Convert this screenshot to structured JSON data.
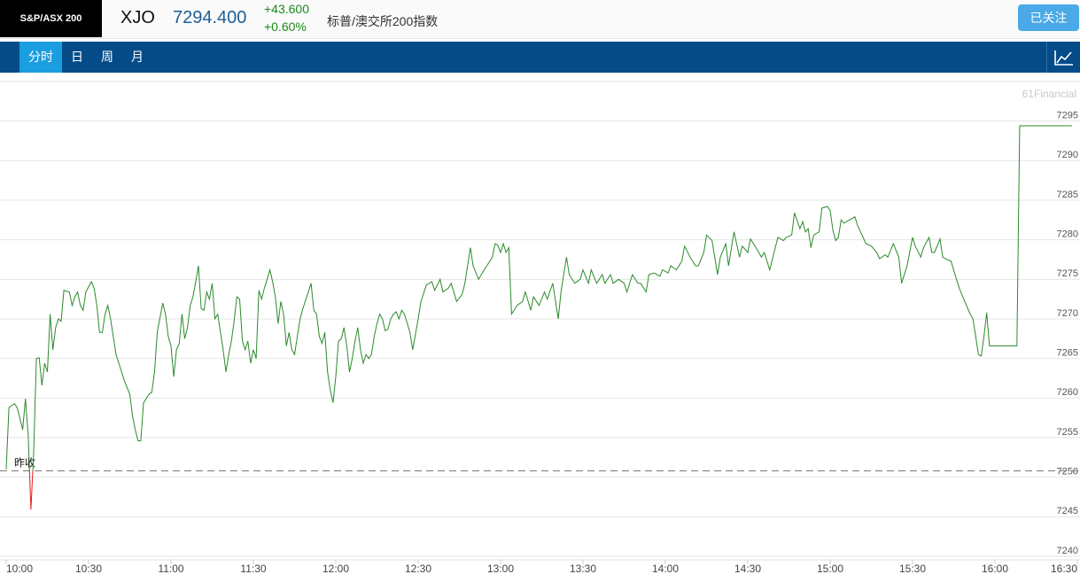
{
  "header": {
    "logo": "S&P/ASX 200",
    "symbol": "XJO",
    "price": "7294.400",
    "change": "+43.600",
    "change_percent": "+0.60%",
    "name": "标普/澳交所200指数",
    "follow_button": "已关注"
  },
  "tabs": {
    "items": [
      "分时",
      "日",
      "周",
      "月"
    ],
    "selected": 0
  },
  "chart_data": {
    "type": "line",
    "watermark": "61Financial",
    "x": [
      "10:00",
      "10:01",
      "10:03",
      "10:04",
      "10:06",
      "10:07",
      "10:08",
      "10:09",
      "10:10",
      "10:11",
      "10:12",
      "10:13",
      "10:14",
      "10:15",
      "10:16",
      "10:17",
      "10:18",
      "10:19",
      "10:20",
      "10:21",
      "10:23",
      "10:24",
      "10:25",
      "10:26",
      "10:27",
      "10:28",
      "10:29",
      "10:31",
      "10:32",
      "10:33",
      "10:34",
      "10:35",
      "10:36",
      "10:37",
      "10:38",
      "10:40",
      "10:41",
      "10:43",
      "10:45",
      "10:46",
      "10:47",
      "10:48",
      "10:49",
      "10:50",
      "10:52",
      "10:53",
      "10:54",
      "10:55",
      "10:57",
      "10:58",
      "10:59",
      "11:00",
      "11:01",
      "11:02",
      "11:03",
      "11:04",
      "11:05",
      "11:06",
      "11:07",
      "11:08",
      "11:09",
      "11:10",
      "11:11",
      "11:12",
      "11:13",
      "11:14",
      "11:15",
      "11:16",
      "11:17",
      "11:18",
      "11:19",
      "11:20",
      "11:21",
      "11:22",
      "11:23",
      "11:24",
      "11:25",
      "11:26",
      "11:27",
      "11:28",
      "11:29",
      "11:30",
      "11:31",
      "11:32",
      "11:33",
      "11:34",
      "11:35",
      "11:36",
      "11:37",
      "11:38",
      "11:39",
      "11:40",
      "11:41",
      "11:42",
      "11:43",
      "11:44",
      "11:45",
      "11:46",
      "11:47",
      "11:48",
      "11:50",
      "11:51",
      "11:52",
      "11:53",
      "11:54",
      "11:55",
      "11:56",
      "11:57",
      "11:58",
      "11:59",
      "12:00",
      "12:01",
      "12:02",
      "12:03",
      "12:04",
      "12:05",
      "12:06",
      "12:07",
      "12:08",
      "12:09",
      "12:10",
      "12:11",
      "12:12",
      "12:13",
      "12:14",
      "12:15",
      "12:16",
      "12:17",
      "12:18",
      "12:19",
      "12:20",
      "12:21",
      "12:22",
      "12:23",
      "12:24",
      "12:25",
      "12:27",
      "12:28",
      "12:30",
      "12:31",
      "12:33",
      "12:35",
      "12:36",
      "12:38",
      "12:39",
      "12:41",
      "12:42",
      "12:44",
      "12:46",
      "12:47",
      "12:49",
      "12:50",
      "12:52",
      "12:54",
      "12:55",
      "12:57",
      "12:58",
      "12:59",
      "13:00",
      "13:01",
      "13:02",
      "13:03",
      "13:04",
      "13:06",
      "13:08",
      "13:09",
      "13:11",
      "13:12",
      "13:14",
      "13:16",
      "13:17",
      "13:19",
      "13:21",
      "13:22",
      "13:24",
      "13:25",
      "13:27",
      "13:29",
      "13:30",
      "13:32",
      "13:33",
      "13:35",
      "13:37",
      "13:38",
      "13:40",
      "13:41",
      "13:43",
      "13:45",
      "13:46",
      "13:48",
      "13:50",
      "13:51",
      "13:53",
      "13:54",
      "13:56",
      "13:58",
      "13:59",
      "14:01",
      "14:02",
      "14:04",
      "14:06",
      "14:07",
      "14:09",
      "14:11",
      "14:12",
      "14:14",
      "14:15",
      "14:17",
      "14:19",
      "14:20",
      "14:22",
      "14:23",
      "14:25",
      "14:27",
      "14:28",
      "14:30",
      "14:31",
      "14:33",
      "14:35",
      "14:36",
      "14:38",
      "14:40",
      "14:41",
      "14:43",
      "14:44",
      "14:46",
      "14:47",
      "14:49",
      "14:50",
      "14:51",
      "14:52",
      "14:53",
      "14:54",
      "14:56",
      "14:57",
      "14:59",
      "15:00",
      "15:01",
      "15:02",
      "15:03",
      "15:04",
      "15:05",
      "15:07",
      "15:09",
      "15:10",
      "15:12",
      "15:13",
      "15:15",
      "15:17",
      "15:18",
      "15:20",
      "15:21",
      "15:23",
      "15:25",
      "15:26",
      "15:28",
      "15:30",
      "15:31",
      "15:33",
      "15:34",
      "15:36",
      "15:37",
      "15:38",
      "15:40",
      "15:41",
      "15:42",
      "15:44",
      "15:46",
      "15:47",
      "15:49",
      "15:51",
      "15:52",
      "15:54",
      "15:55",
      "15:56",
      "15:57",
      "15:58",
      "16:08",
      "16:09",
      "16:28"
    ],
    "values": [
      7251.0,
      7258.8,
      7259.3,
      7258.8,
      7256.0,
      7259.9,
      7255.4,
      7245.9,
      7253.2,
      7265.0,
      7265.1,
      7261.6,
      7264.4,
      7263.3,
      7270.6,
      7266.1,
      7268.9,
      7270.0,
      7269.7,
      7273.6,
      7273.4,
      7271.7,
      7272.8,
      7273.4,
      7271.7,
      7271.1,
      7273.4,
      7274.7,
      7273.9,
      7271.7,
      7268.3,
      7268.3,
      7270.6,
      7271.7,
      7270.0,
      7265.5,
      7264.4,
      7262.2,
      7260.5,
      7257.7,
      7256.0,
      7254.6,
      7254.6,
      7259.4,
      7260.5,
      7260.7,
      7263.3,
      7268.3,
      7272.0,
      7270.6,
      7267.8,
      7266.6,
      7262.7,
      7266.1,
      7266.9,
      7270.6,
      7267.5,
      7268.9,
      7271.7,
      7272.8,
      7274.7,
      7276.7,
      7271.3,
      7271.1,
      7273.4,
      7272.5,
      7274.5,
      7270.0,
      7270.6,
      7268.3,
      7266.1,
      7263.3,
      7265.5,
      7267.2,
      7269.8,
      7272.8,
      7272.5,
      7267.2,
      7266.1,
      7267.2,
      7264.4,
      7266.1,
      7265.0,
      7273.6,
      7272.5,
      7273.9,
      7275.0,
      7276.2,
      7274.7,
      7272.8,
      7269.4,
      7272.2,
      7270.6,
      7266.6,
      7268.3,
      7266.1,
      7265.5,
      7267.8,
      7270.0,
      7271.3,
      7273.4,
      7274.5,
      7271.1,
      7270.6,
      7267.8,
      7266.9,
      7268.3,
      7263.3,
      7261.0,
      7259.4,
      7262.7,
      7267.2,
      7267.5,
      7268.9,
      7266.6,
      7263.3,
      7265.0,
      7267.2,
      7268.9,
      7266.1,
      7264.4,
      7265.5,
      7265.0,
      7265.5,
      7267.8,
      7269.4,
      7270.6,
      7270.0,
      7268.5,
      7268.7,
      7270.0,
      7270.6,
      7270.9,
      7270.0,
      7271.1,
      7270.6,
      7268.3,
      7266.1,
      7270.0,
      7272.2,
      7274.3,
      7274.7,
      7273.6,
      7275.0,
      7273.4,
      7273.9,
      7274.5,
      7272.2,
      7273.1,
      7274.5,
      7279.0,
      7276.7,
      7275.0,
      7276.2,
      7276.7,
      7277.8,
      7279.5,
      7279.3,
      7278.4,
      7279.5,
      7278.4,
      7279.0,
      7270.6,
      7271.7,
      7272.2,
      7273.4,
      7271.1,
      7272.8,
      7271.7,
      7273.4,
      7272.5,
      7274.5,
      7270.0,
      7273.4,
      7277.8,
      7275.6,
      7274.5,
      7275.0,
      7276.2,
      7274.5,
      7276.2,
      7274.5,
      7275.6,
      7274.5,
      7275.6,
      7274.5,
      7275.0,
      7274.5,
      7273.4,
      7275.6,
      7274.5,
      7274.5,
      7273.4,
      7275.6,
      7275.8,
      7275.4,
      7276.2,
      7275.8,
      7276.7,
      7276.2,
      7277.3,
      7279.2,
      7277.8,
      7276.7,
      7276.7,
      7278.4,
      7280.6,
      7279.9,
      7275.6,
      7277.8,
      7279.5,
      7276.7,
      7281.0,
      7277.8,
      7279.2,
      7278.4,
      7280.1,
      7279.0,
      7277.8,
      7278.4,
      7276.2,
      7279.0,
      7280.3,
      7279.9,
      7280.3,
      7280.6,
      7283.4,
      7281.4,
      7282.3,
      7281.0,
      7281.4,
      7279.0,
      7280.6,
      7281.0,
      7284.0,
      7284.2,
      7283.7,
      7281.2,
      7279.9,
      7280.3,
      7282.5,
      7282.1,
      7282.5,
      7282.9,
      7281.8,
      7280.3,
      7279.5,
      7279.2,
      7278.4,
      7277.6,
      7278.1,
      7277.8,
      7279.5,
      7277.8,
      7274.5,
      7276.7,
      7280.3,
      7279.2,
      7277.8,
      7279.0,
      7280.3,
      7278.4,
      7278.4,
      7280.1,
      7277.8,
      7277.6,
      7277.3,
      7275.0,
      7273.9,
      7272.2,
      7270.6,
      7270.0,
      7265.5,
      7265.3,
      7267.8,
      7270.8,
      7266.6,
      7266.6,
      7294.4,
      7294.4
    ],
    "color": "#2b8a2b",
    "color_below": "#e0201a",
    "reference_line": {
      "label": "昨收",
      "value": 7250.8
    },
    "xlim": [
      "10:00",
      "16:30"
    ],
    "xticks": [
      "10:00",
      "10:30",
      "11:00",
      "11:30",
      "12:00",
      "12:30",
      "13:00",
      "13:30",
      "14:00",
      "14:30",
      "15:00",
      "15:30",
      "16:00",
      "16:30"
    ],
    "ylim": [
      7240,
      7300
    ],
    "yticks": [
      7240,
      7245,
      7250,
      7255,
      7260,
      7265,
      7270,
      7275,
      7280,
      7285,
      7290,
      7295
    ],
    "grid": true
  }
}
